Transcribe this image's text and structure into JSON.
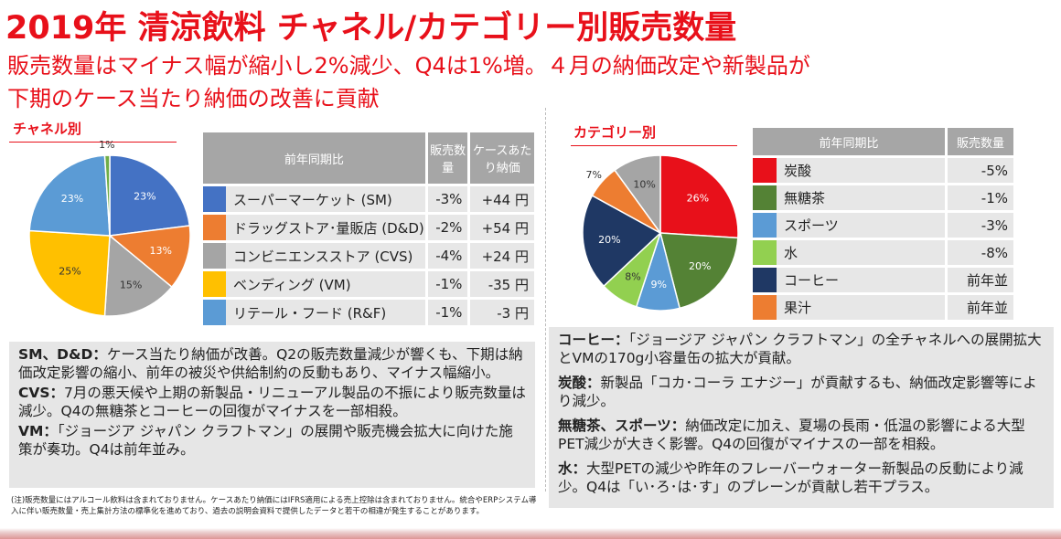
{
  "header": {
    "title": "2019年 清涼飲料 チャネル/カテゴリー別販売数量",
    "subtitle_line1": "販売数量はマイナス幅が縮小し2%減少、Q4は1%増。４月の納価改定や新製品が",
    "subtitle_line2": "下期のケース当たり納価の改善に貢献"
  },
  "channel_section": {
    "label": "チャネル別",
    "table_headers": [
      "前年同期比",
      "販売数量",
      "ケースあたり納価"
    ],
    "rows": [
      {
        "name": "スーパーマーケット (SM)",
        "volume": "-3%",
        "price": "+44 円"
      },
      {
        "name": "ドラッグストア･量販店 (D&D)",
        "volume": "-2%",
        "price": "+54 円"
      },
      {
        "name": "コンビニエンスストア (CVS)",
        "volume": "-4%",
        "price": "+24 円"
      },
      {
        "name": "ベンディング (VM)",
        "volume": "-1%",
        "price": "-35 円"
      },
      {
        "name": "リテール・フード (R&F)",
        "volume": "-1%",
        "price": "-3 円"
      }
    ]
  },
  "category_section": {
    "label": "カテゴリー別",
    "table_headers": [
      "前年同期比",
      "販売数量"
    ],
    "rows": [
      {
        "name": "炭酸",
        "volume": "-5%"
      },
      {
        "name": "無糖茶",
        "volume": "-1%"
      },
      {
        "name": "スポーツ",
        "volume": "-3%"
      },
      {
        "name": "水",
        "volume": "-8%"
      },
      {
        "name": "コーヒー",
        "volume": "前年並"
      },
      {
        "name": "果汁",
        "volume": "前年並"
      }
    ]
  },
  "chart_data": [
    {
      "type": "pie",
      "title": "チャネル別",
      "categories": [
        "スーパーマーケット (SM)",
        "ドラッグストア･量販店 (D&D)",
        "コンビニエンスストア (CVS)",
        "ベンディング (VM)",
        "リテール・フード (R&F)",
        ""
      ],
      "values": [
        23,
        13,
        15,
        25,
        23,
        1
      ],
      "labels": [
        "23%",
        "13%",
        "15%",
        "25%",
        "23%",
        "1%"
      ],
      "colors": [
        "#4472c4",
        "#ed7d31",
        "#a5a5a5",
        "#ffc000",
        "#5b9bd5",
        "#70ad47"
      ],
      "label_colors": [
        "#ffffff",
        "#ffffff",
        "#333333",
        "#333333",
        "#ffffff",
        "#333333"
      ]
    },
    {
      "type": "pie",
      "title": "カテゴリー別",
      "categories": [
        "炭酸",
        "無糖茶",
        "スポーツ",
        "水",
        "コーヒー",
        "果汁",
        ""
      ],
      "values": [
        26,
        20,
        9,
        8,
        20,
        7,
        10
      ],
      "labels": [
        "26%",
        "20%",
        "9%",
        "8%",
        "20%",
        "7%",
        "10%"
      ],
      "colors": [
        "#e8101a",
        "#548235",
        "#5b9bd5",
        "#92d050",
        "#1f3864",
        "#ed7d31",
        "#a5a5a5"
      ],
      "label_colors": [
        "#ffffff",
        "#ffffff",
        "#ffffff",
        "#333333",
        "#ffffff",
        "#333333",
        "#333333"
      ]
    }
  ],
  "notes_left": [
    {
      "head": "SM、D&D：",
      "text": "ケース当たり納価が改善。Q2の販売数量減少が響くも、下期は納価改定影響の縮小、前年の被災や供給制約の反動もあり、マイナス幅縮小。"
    },
    {
      "head": "CVS：",
      "text": "7月の悪天候や上期の新製品・リニューアル製品の不振により販売数量は減少。Q4の無糖茶とコーヒーの回復がマイナスを一部相殺。"
    },
    {
      "head": "VM：",
      "text": "「ジョージア ジャパン クラフトマン」の展開や販売機会拡大に向けた施策が奏功。Q4は前年並み。"
    }
  ],
  "notes_right": [
    {
      "head": "コーヒー：",
      "text": "「ジョージア ジャパン クラフトマン」の全チャネルへの展開拡大とVMの170g小容量缶の拡大が貢献。"
    },
    {
      "head": "炭酸：",
      "text": "新製品「コカ･コーラ エナジー」が貢献するも、納価改定影響等により減少。"
    },
    {
      "head": "無糖茶、スポーツ：",
      "text": "納価改定に加え、夏場の長雨・低温の影響による大型PET減少が大きく影響。Q4の回復がマイナスの一部を相殺。"
    },
    {
      "head": "水：",
      "text": "大型PETの減少や昨年のフレーバーウォーター新製品の反動により減少。Q4は「い･ろ･は･す」のプレーンが貢献し若干プラス。"
    }
  ],
  "footnote": "(注)販売数量にはアルコール飲料は含まれておりません。ケースあたり納価にはIFRS適用による売上控除は含まれておりません。統合やERPシステム導入に伴い販売数量・売上集計方法の標準化を進めており、過去の説明会資料で提供したデータと若干の相違が発生することがあります。"
}
